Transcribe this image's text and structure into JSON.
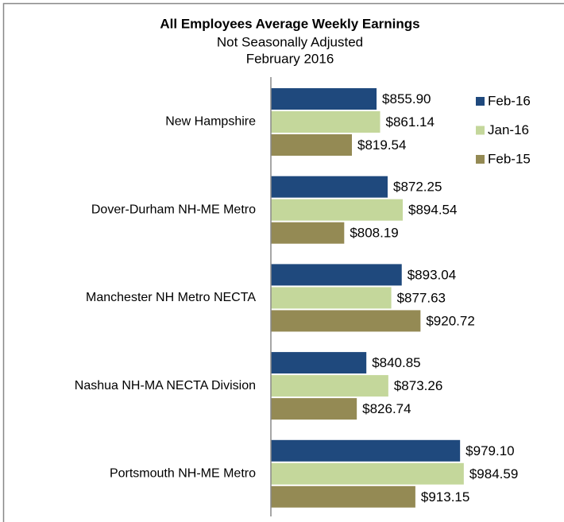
{
  "chart_data": {
    "type": "bar",
    "orientation": "horizontal",
    "title": "All Employees Average Weekly Earnings",
    "subtitle": [
      "Not Seasonally Adjusted",
      "February 2016"
    ],
    "categories": [
      "New Hampshire",
      "Dover-Durham NH-ME Metro",
      "Manchester NH Metro NECTA",
      "Nashua NH-MA NECTA Division",
      "Portsmouth NH-ME Metro"
    ],
    "series": [
      {
        "name": "Feb-16",
        "color": "#1f497d",
        "values": [
          855.9,
          872.25,
          893.04,
          840.85,
          979.1
        ],
        "value_labels": [
          "$855.90",
          "$872.25",
          "$893.04",
          "$840.85",
          "$979.10"
        ]
      },
      {
        "name": "Jan-16",
        "color": "#c4d79b",
        "values": [
          861.14,
          894.54,
          877.63,
          873.26,
          984.59
        ],
        "value_labels": [
          "$861.14",
          "$894.54",
          "$877.63",
          "$873.26",
          "$984.59"
        ]
      },
      {
        "name": "Feb-15",
        "color": "#948a54",
        "values": [
          819.54,
          808.19,
          920.72,
          826.74,
          913.15
        ],
        "value_labels": [
          "$819.54",
          "$808.19",
          "$920.72",
          "$826.74",
          "$913.15"
        ]
      }
    ],
    "xlim": [
      700,
      1000
    ],
    "legend": "right"
  }
}
